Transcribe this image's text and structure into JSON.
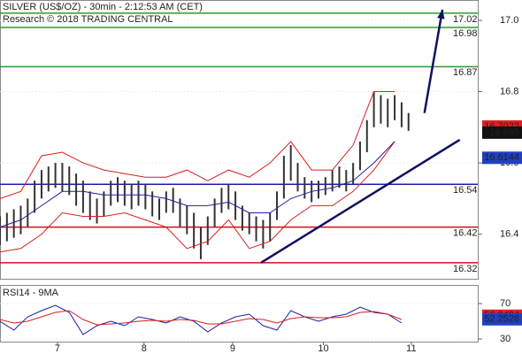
{
  "chart_data": [
    {
      "type": "hilo",
      "title": "SILVER (US$/OZ) - 30min - 2:12:53 AM (CET)",
      "subtitle": "Research © 2018 TRADING CENTRAL",
      "xlim": [
        0,
        69
      ],
      "ylim": [
        16.275,
        17.057
      ],
      "yticks": [
        16.4,
        16.6,
        16.8,
        {
          "value": 17,
          "label": "17.0"
        }
      ],
      "xticks": [
        {
          "value": 8.3,
          "label": "7"
        },
        {
          "value": 20.8,
          "label": "8"
        },
        {
          "value": 33.6,
          "label": "9"
        },
        {
          "value": 46.7,
          "label": "10"
        },
        {
          "value": 59.4,
          "label": "11"
        }
      ],
      "bars": {
        "color": "#333333",
        "x": [
          0,
          1,
          2,
          3,
          4,
          5,
          6,
          7,
          8,
          9,
          10,
          11,
          12,
          13,
          14,
          15,
          16,
          17,
          18,
          19,
          20,
          21,
          22,
          23,
          24,
          25,
          26,
          27,
          28,
          29,
          30,
          31,
          32,
          33,
          34,
          35,
          36,
          37,
          38,
          39,
          40,
          41,
          42,
          43,
          44,
          45,
          46,
          47,
          48,
          49,
          50,
          51,
          52,
          53,
          54,
          55,
          56,
          57,
          58,
          59
        ],
        "high": [
          16.45,
          16.46,
          16.47,
          16.48,
          16.5,
          16.55,
          16.58,
          16.59,
          16.6,
          16.6,
          16.59,
          16.57,
          16.55,
          16.52,
          16.5,
          16.52,
          16.55,
          16.56,
          16.55,
          16.54,
          16.55,
          16.54,
          16.52,
          16.5,
          16.52,
          16.53,
          16.5,
          16.48,
          16.46,
          16.42,
          16.45,
          16.5,
          16.53,
          16.54,
          16.52,
          16.48,
          16.46,
          16.45,
          16.44,
          16.46,
          16.52,
          16.62,
          16.65,
          16.6,
          16.56,
          16.55,
          16.55,
          16.56,
          16.58,
          16.59,
          16.58,
          16.6,
          16.66,
          16.72,
          16.8,
          16.79,
          16.78,
          16.79,
          16.77,
          16.74
        ],
        "low": [
          16.37,
          16.38,
          16.39,
          16.4,
          16.42,
          16.46,
          16.5,
          16.52,
          16.53,
          16.52,
          16.51,
          16.48,
          16.46,
          16.44,
          16.43,
          16.45,
          16.48,
          16.49,
          16.48,
          16.47,
          16.48,
          16.47,
          16.45,
          16.44,
          16.46,
          16.46,
          16.42,
          16.4,
          16.36,
          16.33,
          16.37,
          16.42,
          16.46,
          16.47,
          16.44,
          16.41,
          16.4,
          16.38,
          16.36,
          16.38,
          16.44,
          16.5,
          16.55,
          16.52,
          16.5,
          16.49,
          16.5,
          16.51,
          16.52,
          16.53,
          16.52,
          16.54,
          16.58,
          16.63,
          16.7,
          16.71,
          16.7,
          16.72,
          16.7,
          16.69
        ]
      },
      "series": [
        {
          "color": "#d62020",
          "x": [
            0,
            3,
            6,
            9,
            12,
            15,
            18,
            21,
            24,
            27,
            30,
            33,
            36,
            39,
            42,
            45,
            48,
            51,
            54,
            57
          ],
          "values": [
            16.5,
            16.52,
            16.62,
            16.63,
            16.6,
            16.58,
            16.57,
            16.56,
            16.56,
            16.58,
            16.55,
            16.58,
            16.56,
            16.6,
            16.66,
            16.58,
            16.58,
            16.65,
            16.8,
            16.8
          ]
        },
        {
          "color": "#d62020",
          "x": [
            0,
            3,
            6,
            9,
            12,
            15,
            18,
            21,
            24,
            27,
            30,
            33,
            36,
            39,
            42,
            45,
            48,
            51,
            54,
            57
          ],
          "values": [
            16.35,
            16.36,
            16.4,
            16.46,
            16.45,
            16.45,
            16.46,
            16.44,
            16.42,
            16.36,
            16.38,
            16.44,
            16.36,
            16.38,
            16.44,
            16.48,
            16.48,
            16.52,
            16.58,
            16.66
          ]
        },
        {
          "color": "#2020a0",
          "x": [
            0,
            3,
            6,
            9,
            12,
            15,
            18,
            21,
            24,
            27,
            30,
            33,
            36,
            39,
            42,
            45,
            48,
            51,
            54,
            57
          ],
          "values": [
            16.42,
            16.44,
            16.48,
            16.52,
            16.52,
            16.51,
            16.51,
            16.51,
            16.5,
            16.48,
            16.48,
            16.49,
            16.46,
            16.46,
            16.5,
            16.52,
            16.53,
            16.55,
            16.6,
            16.66
          ]
        }
      ],
      "levels": [
        {
          "value": 17.02,
          "color": "#2e9a2e"
        },
        {
          "value": 16.98,
          "color": "#2e9a2e"
        },
        {
          "value": 16.87,
          "color": "#2e9a2e"
        },
        {
          "value": 16.54,
          "color": "#1c1ca8"
        },
        {
          "value": 16.42,
          "color": "#d41010"
        },
        {
          "value": 16.32,
          "color": "#d41010"
        }
      ],
      "price_tags": [
        {
          "value": 16.7022,
          "color": "#e02020"
        },
        {
          "value": 16.685,
          "color": "#111111"
        },
        {
          "value": 16.6144,
          "color": "#2040c0"
        }
      ],
      "trendline": {
        "color": "#101060",
        "x": [
          37.7,
          66.4
        ],
        "values": [
          16.32,
          16.665
        ]
      },
      "arrow": {
        "color": "#101060",
        "x": [
          61.3,
          63.9
        ],
        "values": [
          16.74,
          17.03
        ]
      }
    },
    {
      "type": "line",
      "title": "RSI14 - 9MA",
      "xlim": [
        0,
        69
      ],
      "ylim": [
        27,
        91
      ],
      "yticks": [
        30,
        70
      ],
      "series": [
        {
          "color": "#1c1ca8",
          "x": [
            0,
            2,
            4,
            6,
            8,
            10,
            12,
            14,
            16,
            18,
            20,
            22,
            24,
            26,
            28,
            30,
            32,
            34,
            36,
            38,
            40,
            42,
            44,
            46,
            48,
            50,
            52,
            54,
            56,
            58
          ],
          "values": [
            50,
            40,
            55,
            62,
            68,
            60,
            35,
            45,
            50,
            45,
            55,
            52,
            48,
            55,
            50,
            38,
            48,
            55,
            58,
            45,
            40,
            62,
            55,
            50,
            55,
            58,
            66,
            60,
            58,
            48
          ]
        },
        {
          "color": "#d62020",
          "x": [
            0,
            2,
            4,
            6,
            8,
            10,
            12,
            14,
            16,
            18,
            20,
            22,
            24,
            26,
            28,
            30,
            32,
            34,
            36,
            38,
            40,
            42,
            44,
            46,
            48,
            50,
            52,
            54,
            56,
            58
          ],
          "values": [
            52,
            48,
            50,
            55,
            60,
            62,
            52,
            46,
            47,
            48,
            50,
            51,
            50,
            52,
            51,
            47,
            47,
            50,
            53,
            52,
            48,
            53,
            55,
            54,
            54,
            55,
            60,
            61,
            58,
            52
          ]
        }
      ],
      "price_tags": [
        {
          "value": 56.2424,
          "color": "#e02020"
        },
        {
          "value": 52.2528,
          "color": "#2040c0"
        }
      ]
    }
  ]
}
